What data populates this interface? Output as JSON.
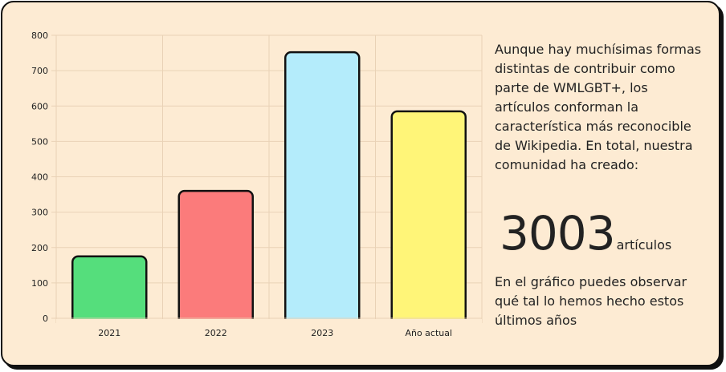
{
  "text": {
    "intro": "Aunque hay muchísimas formas distintas de contribuir como parte de WMLGBT+, los artículos conforman la característica más reconocible de Wikipedia. En total, nuestra comunidad ha creado:",
    "stat_number": "3003",
    "stat_unit": "artículos",
    "outro": "En el gráfico puedes observar qué tal lo hemos hecho estos últimos años"
  },
  "chart_data": {
    "type": "bar",
    "categories": [
      "2021",
      "2022",
      "2023",
      "Año actual"
    ],
    "values": [
      175,
      360,
      752,
      585
    ],
    "colors": [
      "#55de7c",
      "#fb7b7b",
      "#b4ecfb",
      "#fff578"
    ],
    "ylim": [
      0,
      800
    ],
    "yticks": [
      0,
      100,
      200,
      300,
      400,
      500,
      600,
      700,
      800
    ],
    "grid": true,
    "legend": "none"
  }
}
